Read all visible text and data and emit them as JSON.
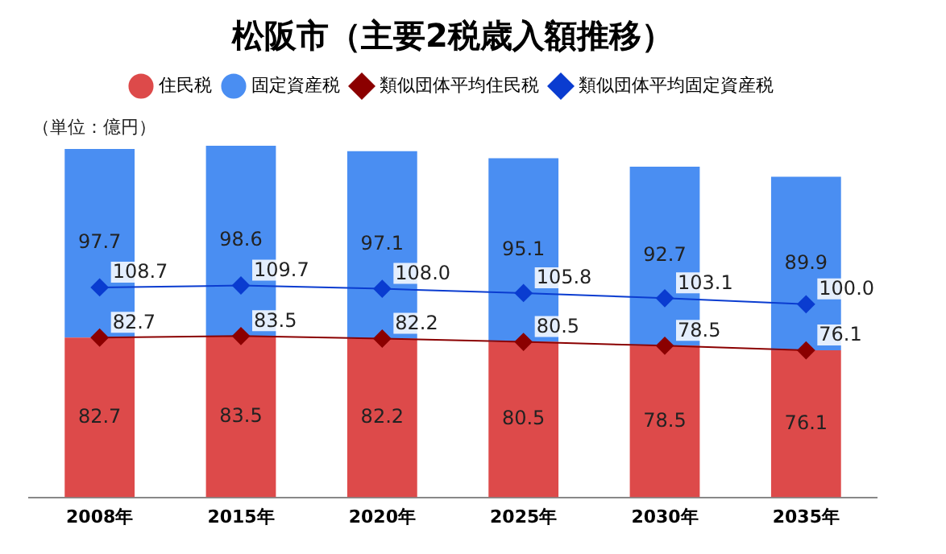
{
  "chart_data": {
    "type": "bar",
    "title": "松阪市（主要2税歳入額推移）",
    "categories": [
      "2008年",
      "2015年",
      "2020年",
      "2025年",
      "2030年",
      "2035年"
    ],
    "series": [
      {
        "name": "住民税",
        "color": "#dd4a4a",
        "values": [
          82.7,
          83.5,
          82.2,
          80.5,
          78.5,
          76.1
        ]
      },
      {
        "name": "固定資産税",
        "color": "#4a8ef2",
        "values": [
          97.7,
          98.6,
          97.1,
          95.1,
          92.7,
          89.9
        ]
      },
      {
        "type": "line",
        "name": "類似団体平均住民税",
        "color": "#8b0000",
        "values": [
          82.7,
          83.5,
          82.2,
          80.5,
          78.5,
          76.1
        ]
      },
      {
        "type": "line",
        "name": "類似団体平均固定資産税",
        "color": "#0a3cd0",
        "values": [
          108.7,
          109.7,
          108.0,
          105.8,
          103.1,
          100.0
        ],
        "value_labels": [
          "108.7",
          "109.7",
          "108.0",
          "105.8",
          "103.1",
          "100.0"
        ]
      }
    ],
    "stacked": true,
    "data_labels": true,
    "legend": "top",
    "tick_labels": "x",
    "grid": false,
    "marker": "diamond",
    "annotations": [
      "（単位：億円）"
    ]
  }
}
